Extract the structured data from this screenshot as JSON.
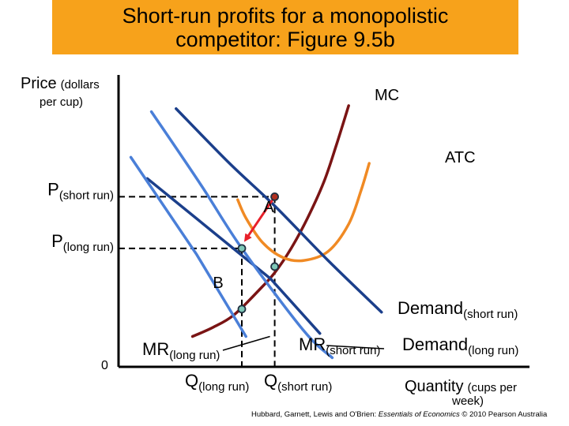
{
  "title": {
    "line1": "Short-run profits for a monopolistic",
    "line2": "competitor: Figure 9.5b"
  },
  "footer": {
    "authors": "Hubbard, Garnett, Lewis and O'Brien:",
    "book": "Essentials of Economics",
    "copyright": "© 2010 Pearson Australia"
  },
  "colors": {
    "title_bg": "#f7a21b",
    "mc": "#7a1414",
    "atc": "#f08a24",
    "demand_short": "#1b3f8b",
    "mr_short": "#1b3f8b",
    "demand_long": "#4a7fd8",
    "mr_long": "#4a7fd8",
    "arrow": "#e8202a",
    "point_a": "#b03020",
    "point_fill": "#7fc8b8"
  },
  "chart_data": {
    "type": "line",
    "title": "Short-run profits for a monopolistic competitor: Figure 9.5b",
    "ylabel": {
      "main": "Price",
      "unit_line1": "(dollars",
      "unit_line2": "per cup)"
    },
    "xlabel": {
      "main": "Quantity",
      "unit_line1": "(cups per",
      "unit_line2": "week)"
    },
    "origin_label": "0",
    "xlim": [
      0,
      100
    ],
    "ylim": [
      0,
      100
    ],
    "ticks": {
      "y": [
        {
          "value": 56,
          "base": "P",
          "sub": "(short run)"
        },
        {
          "value": 39,
          "base": "P",
          "sub": "(long run)"
        }
      ],
      "x": [
        {
          "value": 30,
          "base": "Q",
          "sub": "(long run)"
        },
        {
          "value": 38,
          "base": "Q",
          "sub": "(short run)"
        }
      ]
    },
    "series": [
      {
        "name": "MC",
        "key": "mc",
        "points": [
          [
            18,
            10
          ],
          [
            23,
            13
          ],
          [
            28,
            17
          ],
          [
            34,
            25
          ],
          [
            38,
            31
          ],
          [
            42,
            39
          ],
          [
            46,
            49
          ],
          [
            50,
            61
          ],
          [
            53,
            73
          ],
          [
            56,
            86
          ]
        ]
      },
      {
        "name": "ATC",
        "key": "atc",
        "points": [
          [
            29,
            55
          ],
          [
            31,
            49
          ],
          [
            35,
            41
          ],
          [
            40,
            36
          ],
          [
            45,
            35
          ],
          [
            51,
            38
          ],
          [
            56,
            47
          ],
          [
            59,
            58
          ],
          [
            61,
            67
          ]
        ]
      },
      {
        "name": "Demand",
        "sub": "(short run)",
        "key": "demand_short",
        "points": [
          [
            14,
            85
          ],
          [
            27,
            67
          ],
          [
            38,
            53
          ],
          [
            51,
            35
          ],
          [
            64,
            18
          ]
        ]
      },
      {
        "name": "MR",
        "sub": "(short run)",
        "key": "mr_short",
        "points": [
          [
            7,
            62
          ],
          [
            37,
            29
          ],
          [
            49,
            11
          ]
        ]
      },
      {
        "name": "Demand",
        "sub": "(long run)",
        "key": "demand_long",
        "points": [
          [
            8,
            84
          ],
          [
            20,
            60
          ],
          [
            30,
            39
          ],
          [
            45,
            12
          ],
          [
            52,
            3
          ]
        ]
      },
      {
        "name": "MR",
        "sub": "(long run)",
        "key": "mr_long",
        "points": [
          [
            3,
            69
          ],
          [
            19,
            37
          ],
          [
            31,
            10
          ]
        ]
      }
    ],
    "points": [
      {
        "label": "A",
        "x": 38,
        "y": 56
      },
      {
        "label": "B",
        "x": 30,
        "y": 39
      },
      {
        "label": "",
        "x": 38,
        "y": 33
      },
      {
        "label": "",
        "x": 30,
        "y": 19
      }
    ],
    "arrow": {
      "from": [
        38,
        56
      ],
      "to": [
        31,
        42
      ]
    },
    "profit_lines": [
      {
        "from": [
          0,
          56
        ],
        "to": [
          38,
          56
        ]
      },
      {
        "from": [
          0,
          39
        ],
        "to": [
          30,
          39
        ]
      },
      {
        "from": [
          38,
          56
        ],
        "to": [
          38,
          0
        ]
      },
      {
        "from": [
          30,
          39
        ],
        "to": [
          30,
          0
        ]
      }
    ]
  }
}
